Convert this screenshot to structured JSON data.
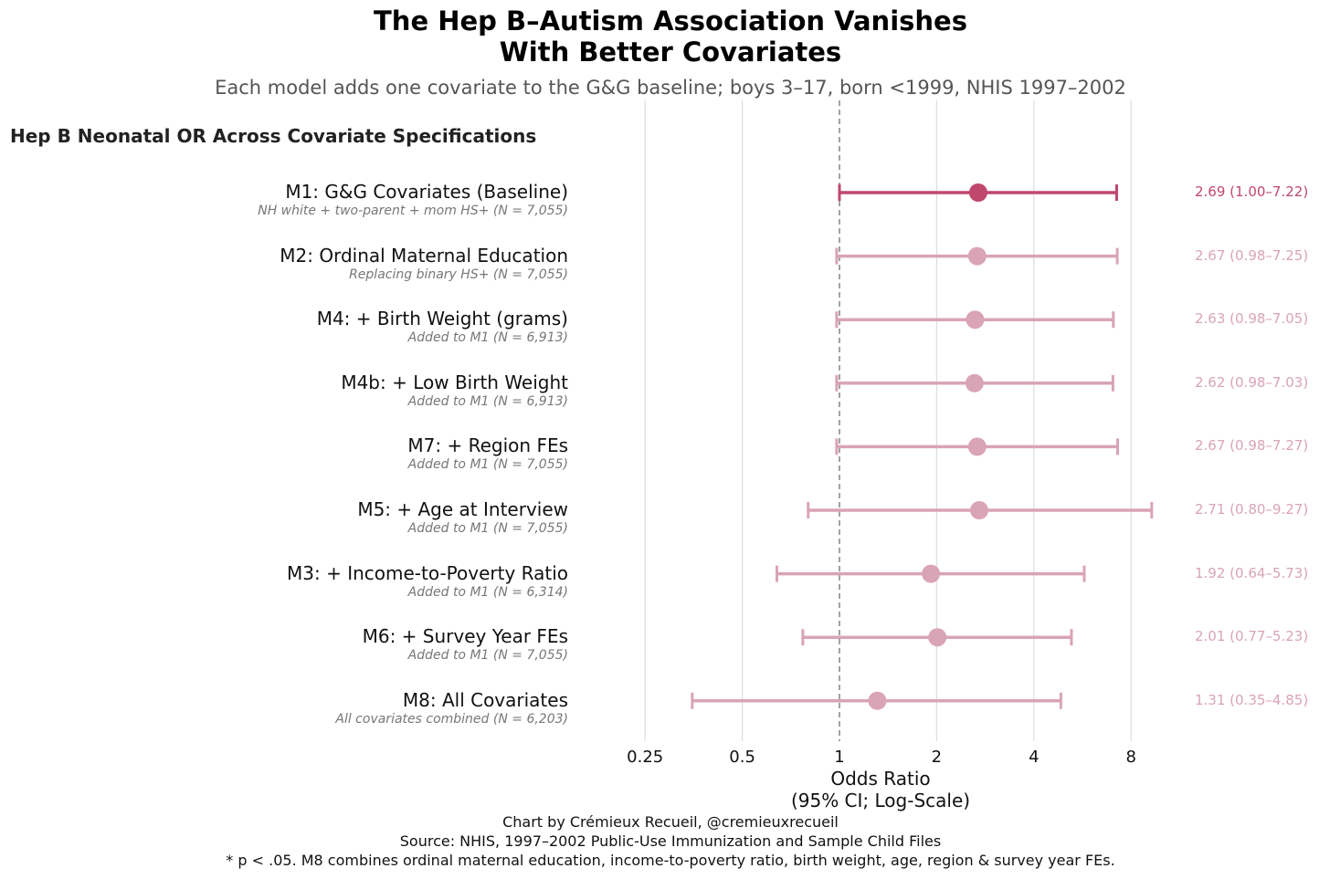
{
  "title_line1": "The Hep B–Autism Association Vanishes",
  "title_line2": "With Better Covariates",
  "subtitle": "Each model adds one covariate to the G&G baseline; boys 3–17, born <1999, NHIS 1997–2002",
  "panel_title": "Hep B Neonatal OR Across Covariate Specifications",
  "xlabel_line1": "Odds Ratio",
  "xlabel_line2": "(95% CI; Log-Scale)",
  "footer": [
    "Chart by Crémieux Recueil, @cremieuxrecueil",
    "Source: NHIS, 1997–2002 Public-Use Immunization and Sample Child Files",
    "* p < .05. M8 combines ordinal maternal education, income-to-poverty ratio, birth weight, age, region & survey year FEs."
  ],
  "colors": {
    "highlight": "#c0476d",
    "muted": "#d9a4b5",
    "reference_line": "#999999",
    "grid": "#dddddd"
  },
  "chart_data": {
    "type": "scatter",
    "xscale": "log2",
    "xlim": [
      0.25,
      8
    ],
    "xticks": [
      0.25,
      0.5,
      1,
      2,
      4,
      8
    ],
    "xtick_labels": [
      "0.25",
      "0.5",
      "1",
      "2",
      "4",
      "8"
    ],
    "reference_value": 1,
    "grid": true,
    "series": [
      {
        "label": "M1: G&G Covariates (Baseline)",
        "note": "NH white + two-parent + mom HS+ (N = 7,055)",
        "or": 2.69,
        "lo": 1.0,
        "hi": 7.22,
        "text": "2.69 (1.00–7.22)",
        "highlight": true
      },
      {
        "label": "M2: Ordinal Maternal Education",
        "note": "Replacing binary HS+ (N = 7,055)",
        "or": 2.67,
        "lo": 0.98,
        "hi": 7.25,
        "text": "2.67 (0.98–7.25)",
        "highlight": false
      },
      {
        "label": "M4: + Birth Weight (grams)",
        "note": "Added to M1 (N = 6,913)",
        "or": 2.63,
        "lo": 0.98,
        "hi": 7.05,
        "text": "2.63 (0.98–7.05)",
        "highlight": false
      },
      {
        "label": "M4b: + Low Birth Weight",
        "note": "Added to M1 (N = 6,913)",
        "or": 2.62,
        "lo": 0.98,
        "hi": 7.03,
        "text": "2.62 (0.98–7.03)",
        "highlight": false
      },
      {
        "label": "M7: + Region FEs",
        "note": "Added to M1 (N = 7,055)",
        "or": 2.67,
        "lo": 0.98,
        "hi": 7.27,
        "text": "2.67 (0.98–7.27)",
        "highlight": false
      },
      {
        "label": "M5: + Age at Interview",
        "note": "Added to M1 (N = 7,055)",
        "or": 2.71,
        "lo": 0.8,
        "hi": 9.27,
        "text": "2.71 (0.80–9.27)",
        "highlight": false
      },
      {
        "label": "M3: + Income-to-Poverty Ratio",
        "note": "Added to M1 (N = 6,314)",
        "or": 1.92,
        "lo": 0.64,
        "hi": 5.73,
        "text": "1.92 (0.64–5.73)",
        "highlight": false
      },
      {
        "label": "M6: + Survey Year FEs",
        "note": "Added to M1 (N = 7,055)",
        "or": 2.01,
        "lo": 0.77,
        "hi": 5.23,
        "text": "2.01 (0.77–5.23)",
        "highlight": false
      },
      {
        "label": "M8: All Covariates",
        "note": "All covariates combined (N = 6,203)",
        "or": 1.31,
        "lo": 0.35,
        "hi": 4.85,
        "text": "1.31 (0.35–4.85)",
        "highlight": false
      }
    ]
  }
}
